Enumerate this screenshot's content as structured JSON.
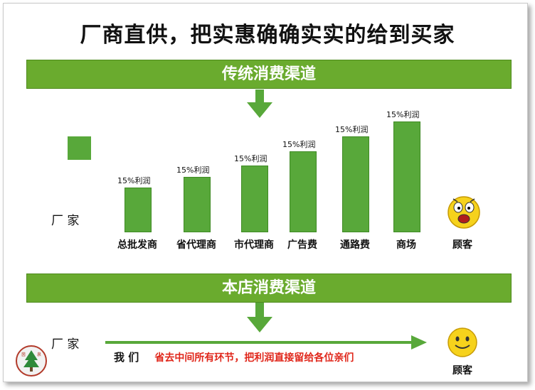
{
  "title": "厂商直供，把实惠确确实实的给到买家",
  "section1": {
    "banner": "传统消费渠道"
  },
  "section2": {
    "banner": "本店消费渠道"
  },
  "manufacturer_label": "厂 家",
  "customer_label": "顾客",
  "chart_data": {
    "type": "bar",
    "categories": [
      "总批发商",
      "省代理商",
      "市代理商",
      "广告费",
      "通路费",
      "商场"
    ],
    "data_labels": [
      "15%利润",
      "15%利润",
      "15%利润",
      "15%利润",
      "15%利润",
      "15%利润"
    ]
  },
  "slogan": {
    "prefix": "我 们",
    "text": "省去中间所有环节，把利润直接留给各位亲们"
  },
  "logo": {
    "text": "茵 泉"
  },
  "colors": {
    "green": "#6aab2e",
    "bar_green": "#58a83a",
    "red": "#e0261a"
  },
  "icons": [
    "shocked-face-icon",
    "smiley-face-icon",
    "down-arrow-icon",
    "right-arrow-icon",
    "tree-logo-icon"
  ]
}
